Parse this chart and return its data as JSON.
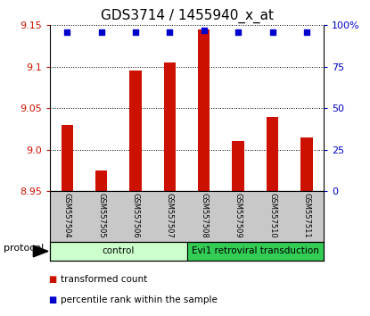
{
  "title": "GDS3714 / 1455940_x_at",
  "samples": [
    "GSM557504",
    "GSM557505",
    "GSM557506",
    "GSM557507",
    "GSM557508",
    "GSM557509",
    "GSM557510",
    "GSM557511"
  ],
  "bar_values": [
    9.03,
    8.975,
    9.095,
    9.105,
    9.145,
    9.01,
    9.04,
    9.015
  ],
  "percentile_values": [
    96,
    96,
    96,
    96,
    97,
    96,
    96,
    96
  ],
  "bar_bottom": 8.95,
  "ylim_left": [
    8.95,
    9.15
  ],
  "ylim_right": [
    0,
    100
  ],
  "yticks_left": [
    8.95,
    9.0,
    9.05,
    9.1,
    9.15
  ],
  "yticks_right": [
    0,
    25,
    50,
    75,
    100
  ],
  "ytick_labels_right": [
    "0",
    "25",
    "50",
    "75",
    "100%"
  ],
  "bar_color": "#cc1100",
  "dot_color": "#0000cc",
  "grid_color": "#000000",
  "tick_area_color": "#c8c8c8",
  "protocol_groups": [
    {
      "label": "control",
      "indices": [
        0,
        1,
        2,
        3
      ],
      "color": "#ccffcc"
    },
    {
      "label": "Evi1 retroviral transduction",
      "indices": [
        4,
        5,
        6,
        7
      ],
      "color": "#33cc55"
    }
  ],
  "legend_items": [
    {
      "label": "transformed count",
      "color": "#cc1100"
    },
    {
      "label": "percentile rank within the sample",
      "color": "#0000cc"
    }
  ],
  "protocol_label": "protocol",
  "title_fontsize": 11,
  "tick_fontsize": 8,
  "sample_fontsize": 6,
  "bar_width": 0.35
}
